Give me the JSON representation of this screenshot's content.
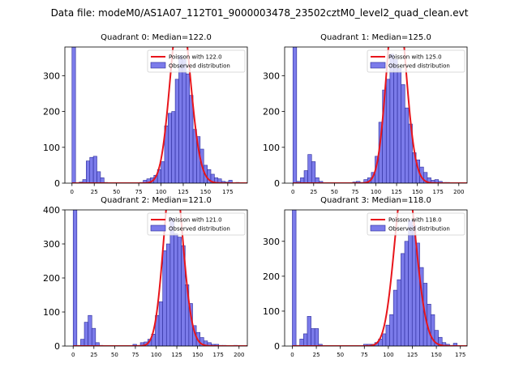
{
  "suptitle": "Data file: modeM0/AS1A07_112T01_9000003478_23502cztM0_level2_quad_clean.evt",
  "colors": {
    "bar_fill": "#7b7bea",
    "bar_edge": "#2a2a9a",
    "poisson_line": "#e8151b"
  },
  "chart_data": [
    {
      "type": "bar",
      "title": "Quadrant 0: Median=122.0",
      "xlim": [
        -8,
        197
      ],
      "ylim": [
        0,
        380
      ],
      "xticks": [
        0,
        25,
        50,
        75,
        100,
        125,
        150,
        175
      ],
      "yticks": [
        0,
        100,
        200,
        300
      ],
      "bin_width": 4,
      "median": 122.0,
      "legend": [
        "Poisson with 122.0",
        "Observed distribution"
      ],
      "bins": [
        0,
        4,
        8,
        12,
        16,
        20,
        24,
        28,
        32,
        36,
        40,
        44,
        48,
        52,
        56,
        60,
        64,
        68,
        72,
        76,
        80,
        84,
        88,
        92,
        96,
        100,
        104,
        108,
        112,
        116,
        120,
        124,
        128,
        132,
        136,
        140,
        144,
        148,
        152,
        156,
        160,
        164,
        168,
        172,
        176,
        180,
        184,
        188
      ],
      "counts": [
        380,
        0,
        3,
        10,
        62,
        72,
        75,
        32,
        15,
        2,
        0,
        0,
        0,
        0,
        0,
        0,
        0,
        0,
        0,
        2,
        8,
        12,
        15,
        22,
        38,
        60,
        160,
        195,
        200,
        290,
        355,
        345,
        305,
        245,
        150,
        130,
        95,
        50,
        38,
        25,
        15,
        12,
        5,
        3,
        8,
        0,
        2,
        0
      ]
    },
    {
      "type": "bar",
      "title": "Quadrant 1: Median=125.0",
      "xlim": [
        -10,
        210
      ],
      "ylim": [
        0,
        380
      ],
      "xticks": [
        0,
        25,
        50,
        75,
        100,
        125,
        150,
        175,
        200
      ],
      "yticks": [
        0,
        100,
        200,
        300
      ],
      "bin_width": 4.5,
      "median": 125.0,
      "legend": [
        "Poisson with 125.0",
        "Observed distribution"
      ],
      "bins": [
        0,
        4.5,
        9,
        13.5,
        18,
        22.5,
        27,
        31.5,
        36,
        40.5,
        45,
        49.5,
        54,
        58.5,
        63,
        67.5,
        72,
        76.5,
        81,
        85.5,
        90,
        94.5,
        99,
        103.5,
        108,
        112.5,
        117,
        121.5,
        126,
        130.5,
        135,
        139.5,
        144,
        148.5,
        153,
        157.5,
        162,
        166.5,
        171,
        175.5,
        180,
        184.5,
        189,
        193.5
      ],
      "counts": [
        380,
        5,
        15,
        35,
        80,
        60,
        15,
        5,
        0,
        0,
        0,
        0,
        0,
        0,
        0,
        0,
        3,
        5,
        2,
        10,
        15,
        30,
        75,
        170,
        260,
        290,
        360,
        345,
        320,
        275,
        210,
        165,
        85,
        65,
        45,
        30,
        15,
        8,
        10,
        5,
        2,
        2,
        0,
        0
      ]
    },
    {
      "type": "bar",
      "title": "Quadrant 2: Median=121.0",
      "xlim": [
        -10,
        210
      ],
      "ylim": [
        0,
        400
      ],
      "xticks": [
        0,
        25,
        50,
        75,
        100,
        125,
        150,
        175,
        200
      ],
      "yticks": [
        0,
        100,
        200,
        300,
        400
      ],
      "bin_width": 4.5,
      "median": 121.0,
      "legend": [
        "Poisson with 121.0",
        "Observed distribution"
      ],
      "bins": [
        0,
        4.5,
        9,
        13.5,
        18,
        22.5,
        27,
        31.5,
        36,
        40.5,
        45,
        49.5,
        54,
        58.5,
        63,
        67.5,
        72,
        76.5,
        81,
        85.5,
        90,
        94.5,
        99,
        103.5,
        108,
        112.5,
        117,
        121.5,
        126,
        130.5,
        135,
        139.5,
        144,
        148.5,
        153,
        157.5,
        162,
        166.5,
        171,
        175.5,
        180,
        184.5,
        189,
        193.5
      ],
      "counts": [
        400,
        2,
        20,
        70,
        90,
        52,
        10,
        2,
        0,
        0,
        0,
        0,
        0,
        0,
        0,
        0,
        5,
        2,
        10,
        12,
        20,
        35,
        90,
        130,
        280,
        300,
        375,
        330,
        320,
        295,
        180,
        125,
        60,
        40,
        25,
        15,
        10,
        5,
        5,
        2,
        2,
        0,
        0,
        2
      ]
    },
    {
      "type": "bar",
      "title": "Quadrant 3: Median=118.0",
      "xlim": [
        -8,
        182
      ],
      "ylim": [
        0,
        390
      ],
      "xticks": [
        0,
        25,
        50,
        75,
        100,
        125,
        150,
        175
      ],
      "yticks": [
        0,
        100,
        200,
        300
      ],
      "bin_width": 3.9,
      "median": 118.0,
      "legend": [
        "Poisson with 118.0",
        "Observed distribution"
      ],
      "bins": [
        0,
        3.9,
        7.8,
        11.7,
        15.6,
        19.5,
        23.4,
        27.3,
        31.2,
        35.1,
        39,
        42.9,
        46.8,
        50.7,
        54.6,
        58.5,
        62.4,
        66.3,
        70.2,
        74.1,
        78,
        81.9,
        85.8,
        89.7,
        93.6,
        97.5,
        101.4,
        105.3,
        109.2,
        113.1,
        117,
        120.9,
        124.8,
        128.7,
        132.6,
        136.5,
        140.4,
        144.3,
        148.2,
        152.1,
        156,
        159.9,
        163.8,
        167.7
      ],
      "counts": [
        390,
        2,
        20,
        35,
        85,
        50,
        50,
        5,
        0,
        0,
        0,
        0,
        0,
        0,
        0,
        0,
        0,
        0,
        0,
        5,
        5,
        5,
        10,
        20,
        35,
        60,
        90,
        160,
        190,
        265,
        300,
        360,
        345,
        295,
        225,
        180,
        120,
        90,
        45,
        25,
        10,
        5,
        2,
        8
      ]
    }
  ]
}
